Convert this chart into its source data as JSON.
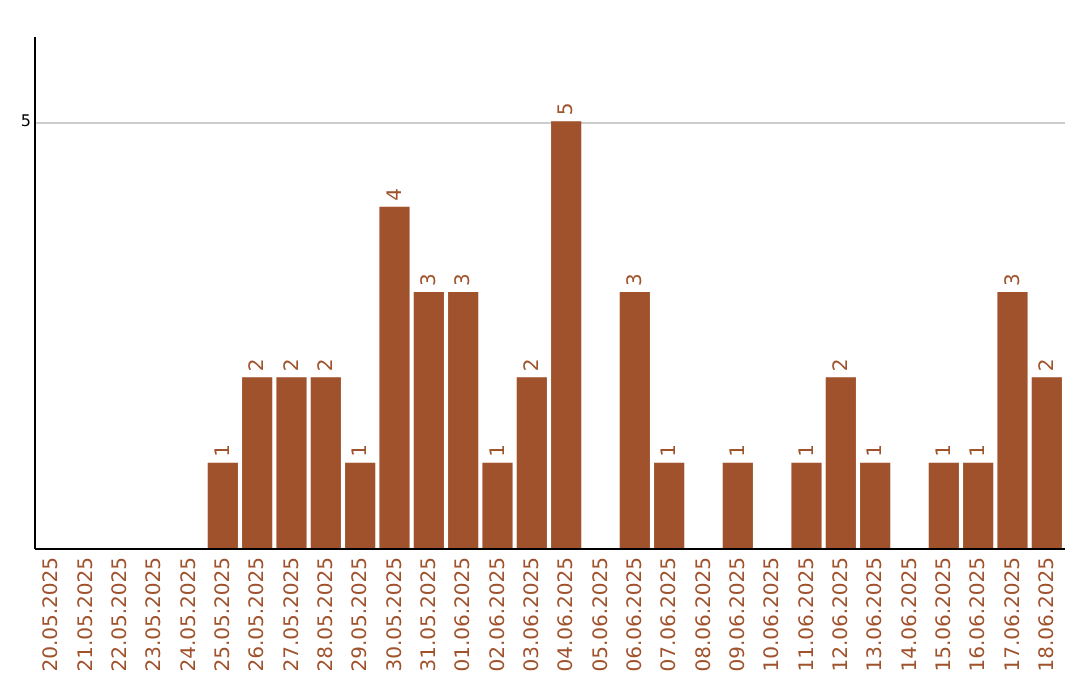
{
  "chart_data": {
    "type": "bar",
    "categories": [
      "20.05.2025",
      "21.05.2025",
      "22.05.2025",
      "23.05.2025",
      "24.05.2025",
      "25.05.2025",
      "26.05.2025",
      "27.05.2025",
      "28.05.2025",
      "29.05.2025",
      "30.05.2025",
      "31.05.2025",
      "01.06.2025",
      "02.06.2025",
      "03.06.2025",
      "04.06.2025",
      "05.06.2025",
      "06.06.2025",
      "07.06.2025",
      "08.06.2025",
      "09.06.2025",
      "10.06.2025",
      "11.06.2025",
      "12.06.2025",
      "13.06.2025",
      "14.06.2025",
      "15.06.2025",
      "16.06.2025",
      "17.06.2025",
      "18.06.2025"
    ],
    "values": [
      null,
      null,
      null,
      null,
      null,
      1,
      2,
      2,
      2,
      1,
      4,
      3,
      3,
      1,
      2,
      5,
      null,
      3,
      1,
      null,
      1,
      null,
      1,
      2,
      1,
      null,
      1,
      1,
      3,
      2
    ],
    "color": "#a0522d",
    "ylim": [
      0,
      6
    ],
    "yticks": [
      5
    ],
    "grid": "y",
    "data_labels": true
  }
}
